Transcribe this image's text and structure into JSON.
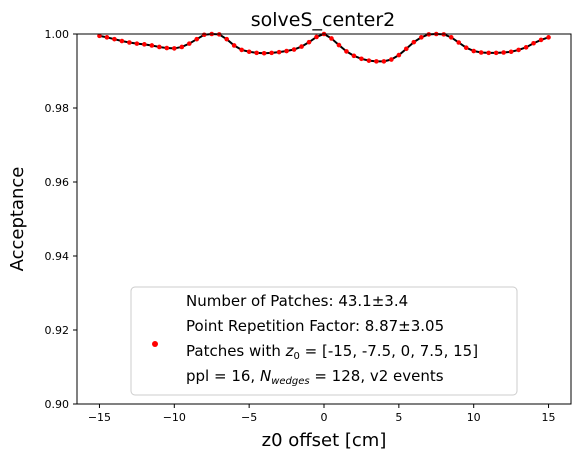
{
  "chart_data": {
    "type": "scatter",
    "title": "solveS_center2",
    "xlabel": "z0 offset [cm]",
    "ylabel": "Acceptance",
    "xlim": [
      -16.5,
      16.5
    ],
    "ylim": [
      0.9,
      1.0
    ],
    "xticks": [
      -15,
      -10,
      -5,
      0,
      5,
      10,
      15
    ],
    "xtick_labels": [
      "−15",
      "−10",
      "−5",
      "0",
      "5",
      "10",
      "15"
    ],
    "yticks": [
      0.9,
      0.92,
      0.94,
      0.96,
      0.98,
      1.0
    ],
    "ytick_labels": [
      "0.90",
      "0.92",
      "0.94",
      "0.96",
      "0.98",
      "1.00"
    ],
    "grid": false,
    "legend_position": "lower-center",
    "series": [
      {
        "marker_color": "#ff0000",
        "line_color": "#000000",
        "x": [
          -15.0,
          -14.5,
          -14.0,
          -13.5,
          -13.0,
          -12.5,
          -12.0,
          -11.5,
          -11.0,
          -10.5,
          -10.0,
          -9.5,
          -9.0,
          -8.5,
          -8.0,
          -7.5,
          -7.0,
          -6.5,
          -6.0,
          -5.5,
          -5.0,
          -4.5,
          -4.0,
          -3.5,
          -3.0,
          -2.5,
          -2.0,
          -1.5,
          -1.0,
          -0.5,
          0.0,
          0.5,
          1.0,
          1.5,
          2.0,
          2.5,
          3.0,
          3.5,
          4.0,
          4.5,
          5.0,
          5.5,
          6.0,
          6.5,
          7.0,
          7.5,
          8.0,
          8.5,
          9.0,
          9.5,
          10.0,
          10.5,
          11.0,
          11.5,
          12.0,
          12.5,
          13.0,
          13.5,
          14.0,
          14.5,
          15.0
        ],
        "y": [
          0.9995,
          0.9991,
          0.9986,
          0.9981,
          0.9977,
          0.9974,
          0.9972,
          0.9969,
          0.9965,
          0.9962,
          0.9961,
          0.9965,
          0.9974,
          0.9986,
          0.9998,
          1.0,
          0.9999,
          0.9986,
          0.9969,
          0.9957,
          0.9952,
          0.9949,
          0.9948,
          0.9949,
          0.9951,
          0.9954,
          0.9958,
          0.9966,
          0.9978,
          0.9992,
          1.0,
          0.9988,
          0.997,
          0.9953,
          0.9941,
          0.9933,
          0.9928,
          0.9926,
          0.9926,
          0.9931,
          0.9943,
          0.996,
          0.9978,
          0.9991,
          0.9999,
          1.0,
          0.9999,
          0.9991,
          0.9977,
          0.9963,
          0.9954,
          0.995,
          0.9949,
          0.9949,
          0.995,
          0.9952,
          0.9957,
          0.9964,
          0.9975,
          0.9984,
          0.9991
        ]
      }
    ],
    "legend": {
      "lines": [
        "Number of Patches: 43.1±3.4",
        "Point Repetition Factor: 8.87±3.05"
      ],
      "line3_pre": "Patches with ",
      "line3_var": "z",
      "line3_sub": "0",
      "line3_post": " = [-15, -7.5, 0, 7.5, 15]",
      "line4_pre": "ppl = 16, ",
      "line4_var": "N",
      "line4_sub": "wedges",
      "line4_post": " = 128, v2 events"
    }
  }
}
